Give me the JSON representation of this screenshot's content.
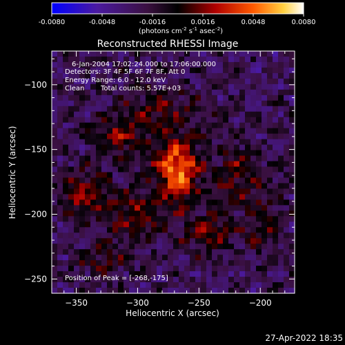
{
  "colorbar": {
    "ticks": [
      "-0.0080",
      "-0.0048",
      "-0.0016",
      "0.0016",
      "0.0048",
      "0.0080"
    ],
    "tick_values": [
      -0.008,
      -0.0048,
      -0.0016,
      0.0016,
      0.0048,
      0.008
    ],
    "range": [
      -0.008,
      0.008
    ],
    "unit_main": "(photons cm",
    "unit_sup1": "-2",
    "unit_mid": " s",
    "unit_sup2": "-1",
    "unit_end": " asec",
    "unit_sup3": "-2",
    "unit_close": ")"
  },
  "chart_data": {
    "type": "heatmap",
    "title": "Reconstructed RHESSI Image",
    "xlabel": "Heliocentric X (arcsec)",
    "ylabel": "Heliocentric Y (arcsec)",
    "xlim": [
      -370,
      -172
    ],
    "ylim": [
      -261,
      -74
    ],
    "xticks": [
      -350,
      -300,
      -250,
      -200
    ],
    "yticks": [
      -100,
      -150,
      -200,
      -250
    ],
    "annotations": {
      "time": "6-Jan-2004 17:02:24.000 to 17:06:00.000",
      "detectors": "Detectors: 3F 4F 5F 6F 7F 8F, Att 0",
      "energy": "Energy Range: 6.0 - 12.0 keV",
      "clean": "Clean",
      "counts": "Total counts: 5.57E+03",
      "peak": "Position of Peak = [-268,-175]"
    },
    "peak": {
      "x": -268,
      "y": -175
    },
    "sources": [
      {
        "x": -268,
        "y": -165,
        "sx": 13,
        "sy": 17,
        "amp": 0.0072
      },
      {
        "x": -345,
        "y": -185,
        "sx": 14,
        "sy": 12,
        "amp": 0.004
      },
      {
        "x": -315,
        "y": -140,
        "sx": 16,
        "sy": 12,
        "amp": 0.0036
      },
      {
        "x": -300,
        "y": -200,
        "sx": 18,
        "sy": 14,
        "amp": 0.0034
      },
      {
        "x": -240,
        "y": -215,
        "sx": 16,
        "sy": 13,
        "amp": 0.003
      },
      {
        "x": -220,
        "y": -170,
        "sx": 14,
        "sy": 16,
        "amp": 0.003
      },
      {
        "x": -330,
        "y": -235,
        "sx": 14,
        "sy": 12,
        "amp": 0.0024
      },
      {
        "x": -280,
        "y": -118,
        "sx": 22,
        "sy": 12,
        "amp": 0.0026
      },
      {
        "x": -195,
        "y": -205,
        "sx": 12,
        "sy": 20,
        "amp": 0.0022
      }
    ],
    "background": -0.0025
  },
  "timestamp": "27-Apr-2022 18:35"
}
